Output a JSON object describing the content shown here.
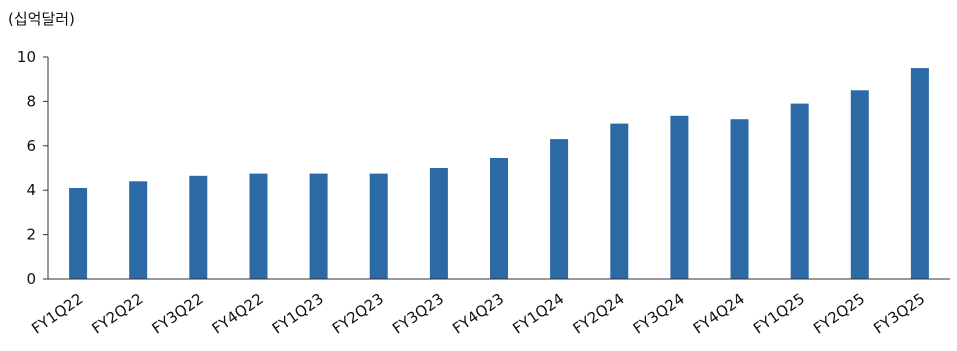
{
  "chart_data": {
    "type": "bar",
    "unit_label": "(십억달러)",
    "categories": [
      "FY1Q22",
      "FY2Q22",
      "FY3Q22",
      "FY4Q22",
      "FY1Q23",
      "FY2Q23",
      "FY3Q23",
      "FY4Q23",
      "FY1Q24",
      "FY2Q24",
      "FY3Q24",
      "FY4Q24",
      "FY1Q25",
      "FY2Q25",
      "FY3Q25"
    ],
    "values": [
      4.1,
      4.4,
      4.65,
      4.75,
      4.75,
      4.75,
      5.0,
      5.45,
      6.3,
      7.0,
      7.35,
      7.2,
      7.9,
      8.5,
      9.5
    ],
    "ylim": [
      0,
      10
    ],
    "yticks": [
      0,
      2,
      4,
      6,
      8,
      10
    ],
    "bar_color": "#2c6aa6",
    "axis_color": "#333333",
    "grid": false,
    "legend": "none"
  }
}
